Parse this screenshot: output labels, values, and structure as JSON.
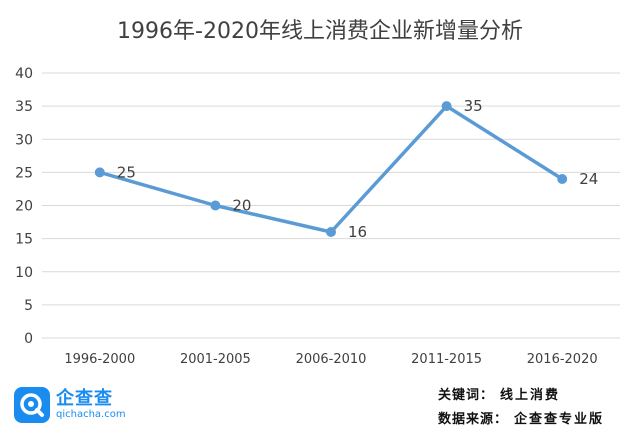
{
  "chart_data": {
    "type": "line",
    "title": "1996年-2020年线上消费企业新增量分析",
    "categories": [
      "1996-2000",
      "2001-2005",
      "2006-2010",
      "2011-2015",
      "2016-2020"
    ],
    "series": [
      {
        "values": [
          25,
          20,
          16,
          35,
          24
        ]
      }
    ],
    "ylim": [
      0,
      40
    ],
    "yticks": [
      0,
      5,
      10,
      15,
      20,
      25,
      30,
      35,
      40
    ],
    "grid": true,
    "data_labels": true,
    "colors": {
      "line": "#5b9bd5",
      "grid": "#d9d9d9",
      "text": "#404040"
    }
  },
  "footer": {
    "logo_name": "企查查",
    "logo_url": "qichacha.com",
    "keyword_label": "关键词：",
    "keyword_value": "线上消费",
    "source_label": "数据来源：",
    "source_value": "企查查专业版"
  }
}
